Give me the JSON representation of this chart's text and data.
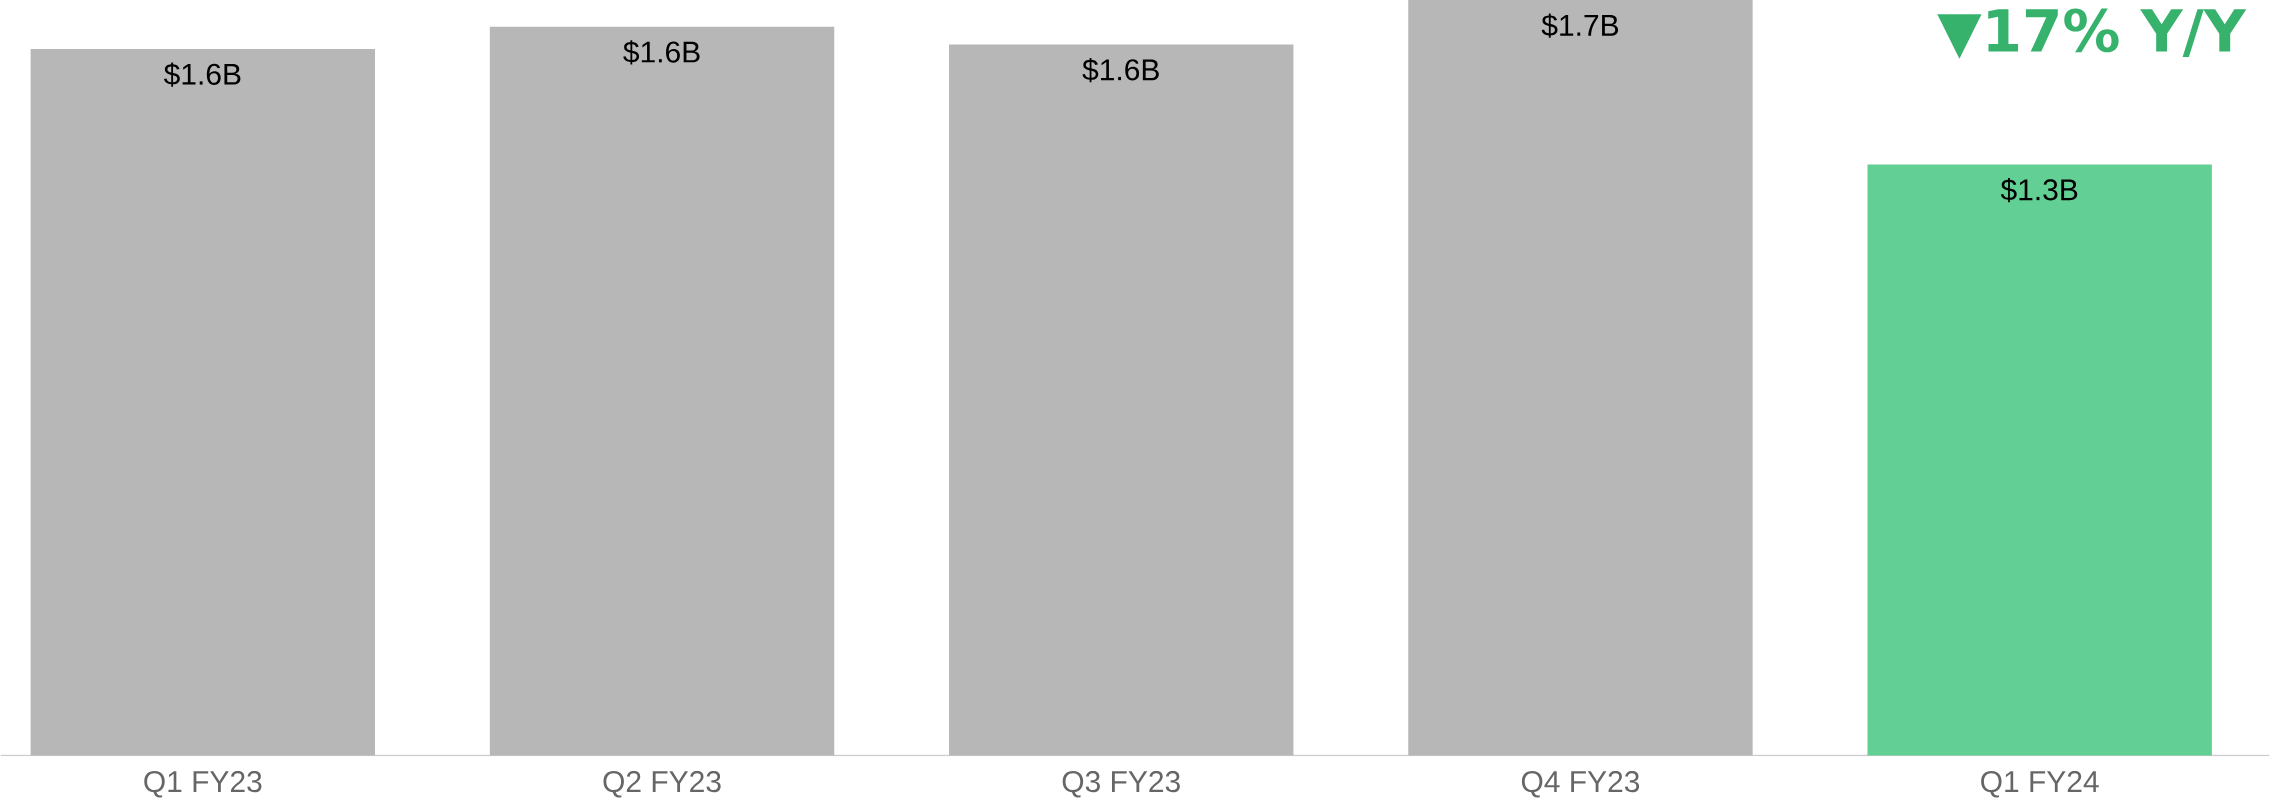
{
  "chart_data": {
    "type": "bar",
    "categories": [
      "Q1 FY23",
      "Q2 FY23",
      "Q3 FY23",
      "Q4 FY23",
      "Q1 FY24"
    ],
    "values": [
      1.59,
      1.64,
      1.6,
      1.7,
      1.33
    ],
    "value_labels": [
      "$1.6B",
      "$1.6B",
      "$1.6B",
      "$1.7B",
      "$1.3B"
    ],
    "colors": [
      "#b7b7b7",
      "#b7b7b7",
      "#b7b7b7",
      "#b7b7b7",
      "#62cf94"
    ],
    "annotations": [
      "▼17% Y/Y"
    ]
  }
}
